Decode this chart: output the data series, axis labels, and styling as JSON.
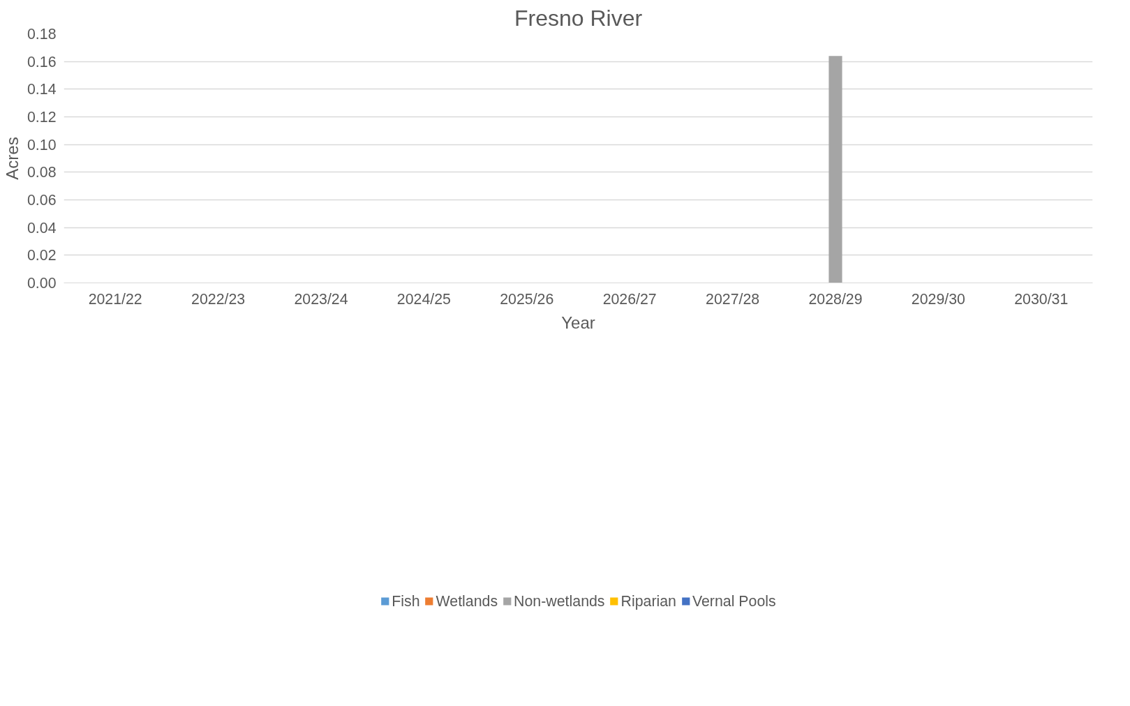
{
  "chart_data": {
    "type": "bar",
    "title": "Fresno River",
    "xlabel": "Year",
    "ylabel": "Acres",
    "categories": [
      "2021/22",
      "2022/23",
      "2023/24",
      "2024/25",
      "2025/26",
      "2026/27",
      "2027/28",
      "2028/29",
      "2029/30",
      "2030/31"
    ],
    "series": [
      {
        "name": "Fish",
        "color": "#5b9bd5",
        "values": [
          0,
          0,
          0,
          0,
          0,
          0,
          0,
          0,
          0,
          0
        ]
      },
      {
        "name": "Wetlands",
        "color": "#ed7d31",
        "values": [
          0,
          0,
          0,
          0,
          0,
          0,
          0,
          0,
          0,
          0
        ]
      },
      {
        "name": "Non-wetlands",
        "color": "#a5a5a5",
        "values": [
          0,
          0,
          0,
          0,
          0,
          0,
          0,
          0.164,
          0,
          0
        ]
      },
      {
        "name": "Riparian",
        "color": "#ffc000",
        "values": [
          0,
          0,
          0,
          0,
          0,
          0,
          0,
          0,
          0,
          0
        ]
      },
      {
        "name": "Vernal Pools",
        "color": "#4472c4",
        "values": [
          0,
          0,
          0,
          0,
          0,
          0,
          0,
          0,
          0,
          0
        ]
      }
    ],
    "ylim": [
      0,
      0.18
    ],
    "yticks": [
      {
        "value": 0,
        "label": "0.00"
      },
      {
        "value": 0.02,
        "label": "0.02"
      },
      {
        "value": 0.04,
        "label": "0.04"
      },
      {
        "value": 0.06,
        "label": "0.06"
      },
      {
        "value": 0.08,
        "label": "0.08"
      },
      {
        "value": 0.1,
        "label": "0.10"
      },
      {
        "value": 0.12,
        "label": "0.12"
      },
      {
        "value": 0.14,
        "label": "0.14"
      },
      {
        "value": 0.16,
        "label": "0.16"
      },
      {
        "value": 0.18,
        "label": "0.18"
      }
    ],
    "grid": "y",
    "legend": "bottom"
  }
}
